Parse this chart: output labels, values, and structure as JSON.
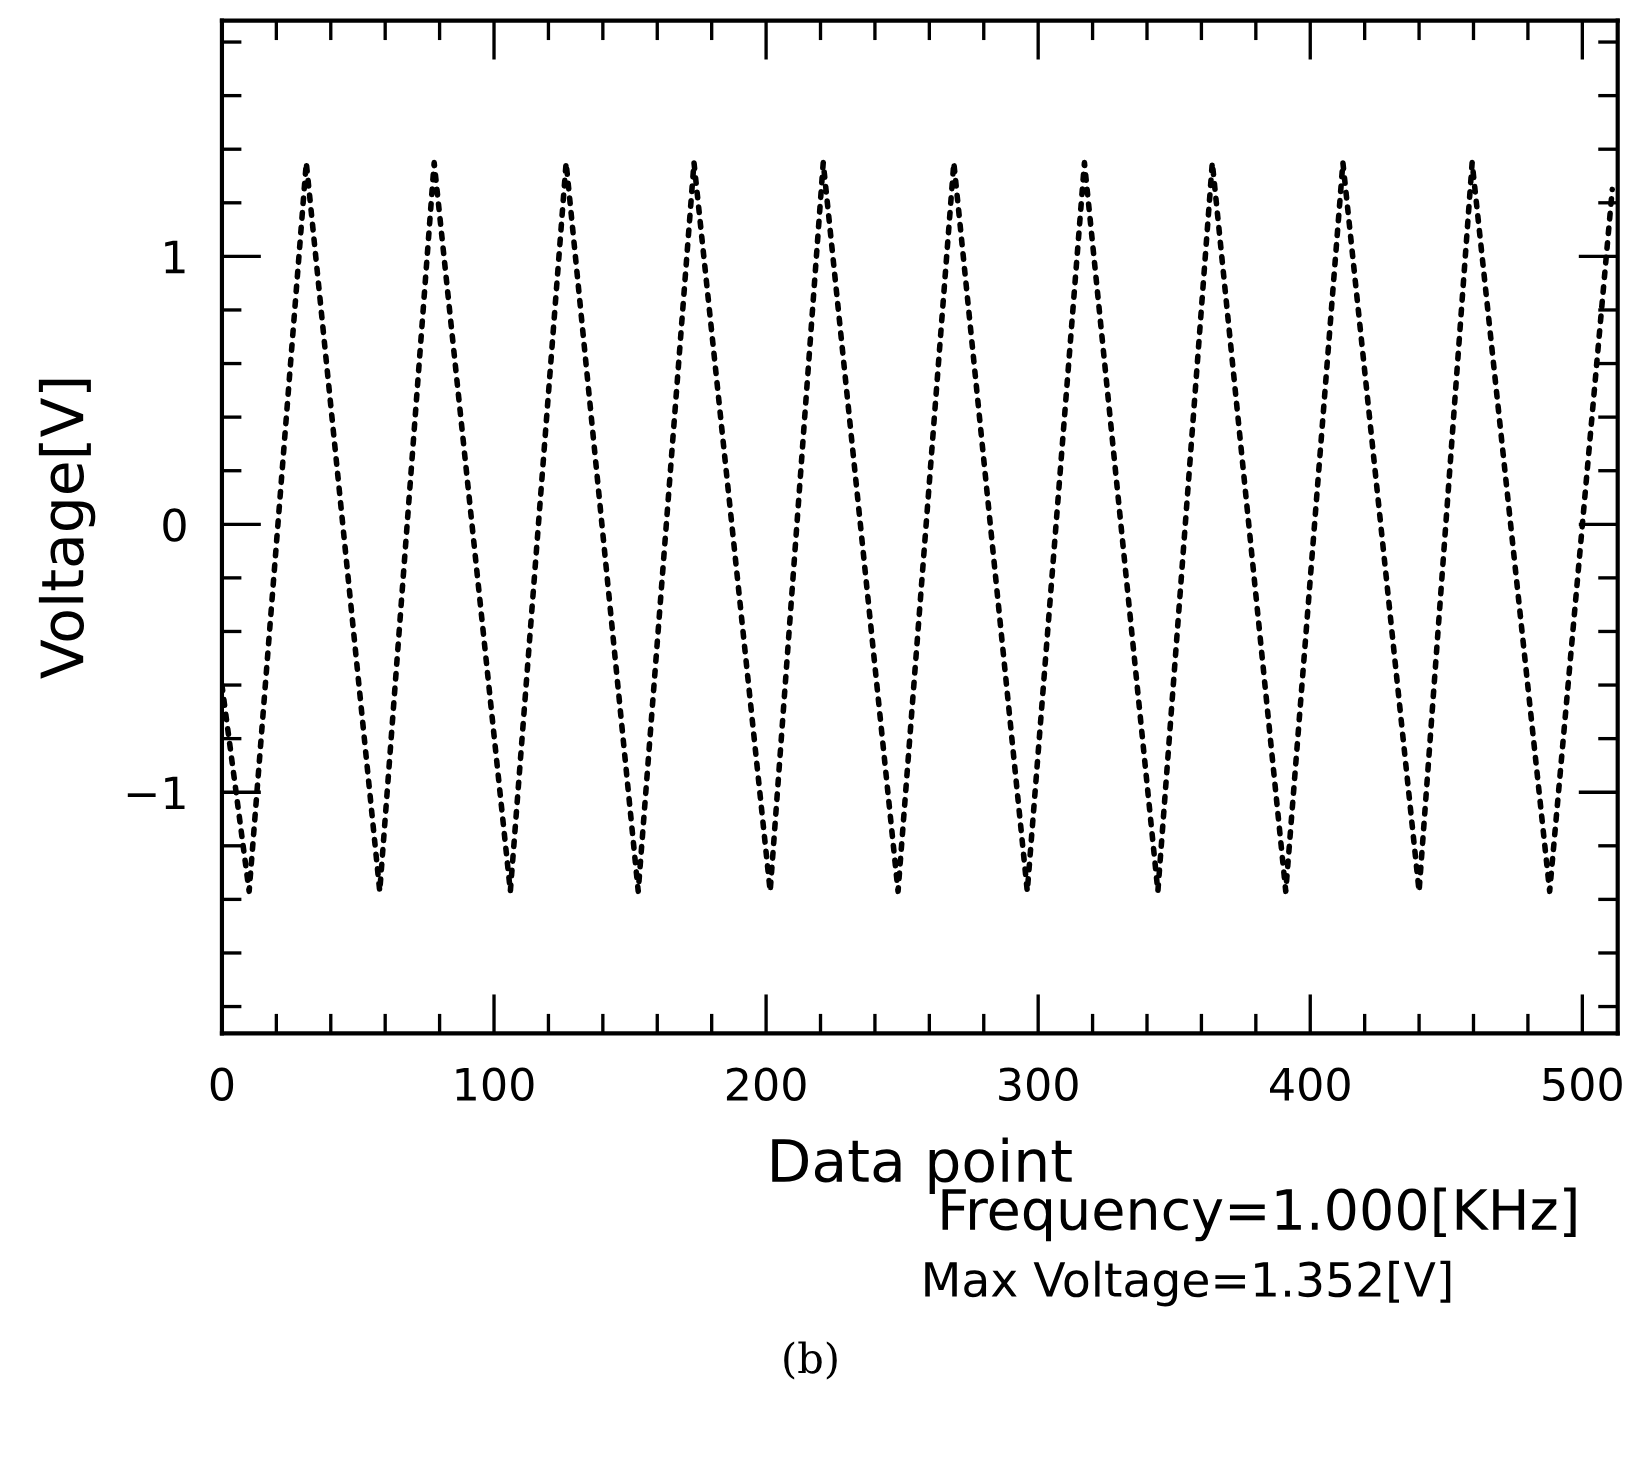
{
  "chart_data": {
    "type": "line",
    "xlabel": "Data point",
    "ylabel": "Voltage[V]",
    "series": [
      {
        "color": "#000000",
        "x": [
          0,
          10,
          31,
          58,
          78,
          106,
          126.5,
          153,
          173.5,
          201.5,
          221,
          248.5,
          269,
          296,
          317,
          344,
          364,
          391,
          412,
          440,
          459.5,
          488,
          511
        ],
        "values": [
          -0.6,
          -1.37,
          1.35,
          -1.37,
          1.35,
          -1.37,
          1.35,
          -1.37,
          1.35,
          -1.37,
          1.35,
          -1.37,
          1.35,
          -1.37,
          1.35,
          -1.37,
          1.35,
          -1.37,
          1.35,
          -1.37,
          1.35,
          -1.37,
          1.25
        ]
      }
    ],
    "xlim": [
      0,
      513
    ],
    "xticks": [
      0,
      100,
      200,
      300,
      400,
      500
    ],
    "ylim": [
      -1.9,
      1.88
    ],
    "yticks": [
      -1,
      0,
      1
    ],
    "grid": false,
    "legend": false,
    "marker": "none",
    "line_style": "dotted",
    "annotations": [
      "Frequency=1.000[KHz]",
      "Max Voltage=1.352[V]",
      "(b)"
    ]
  }
}
